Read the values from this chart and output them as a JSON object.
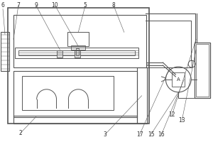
{
  "bg_color": "#ffffff",
  "line_color": "#555555",
  "label_color": "#333333",
  "fig_w": 3.0,
  "fig_h": 2.0,
  "dpi": 100
}
